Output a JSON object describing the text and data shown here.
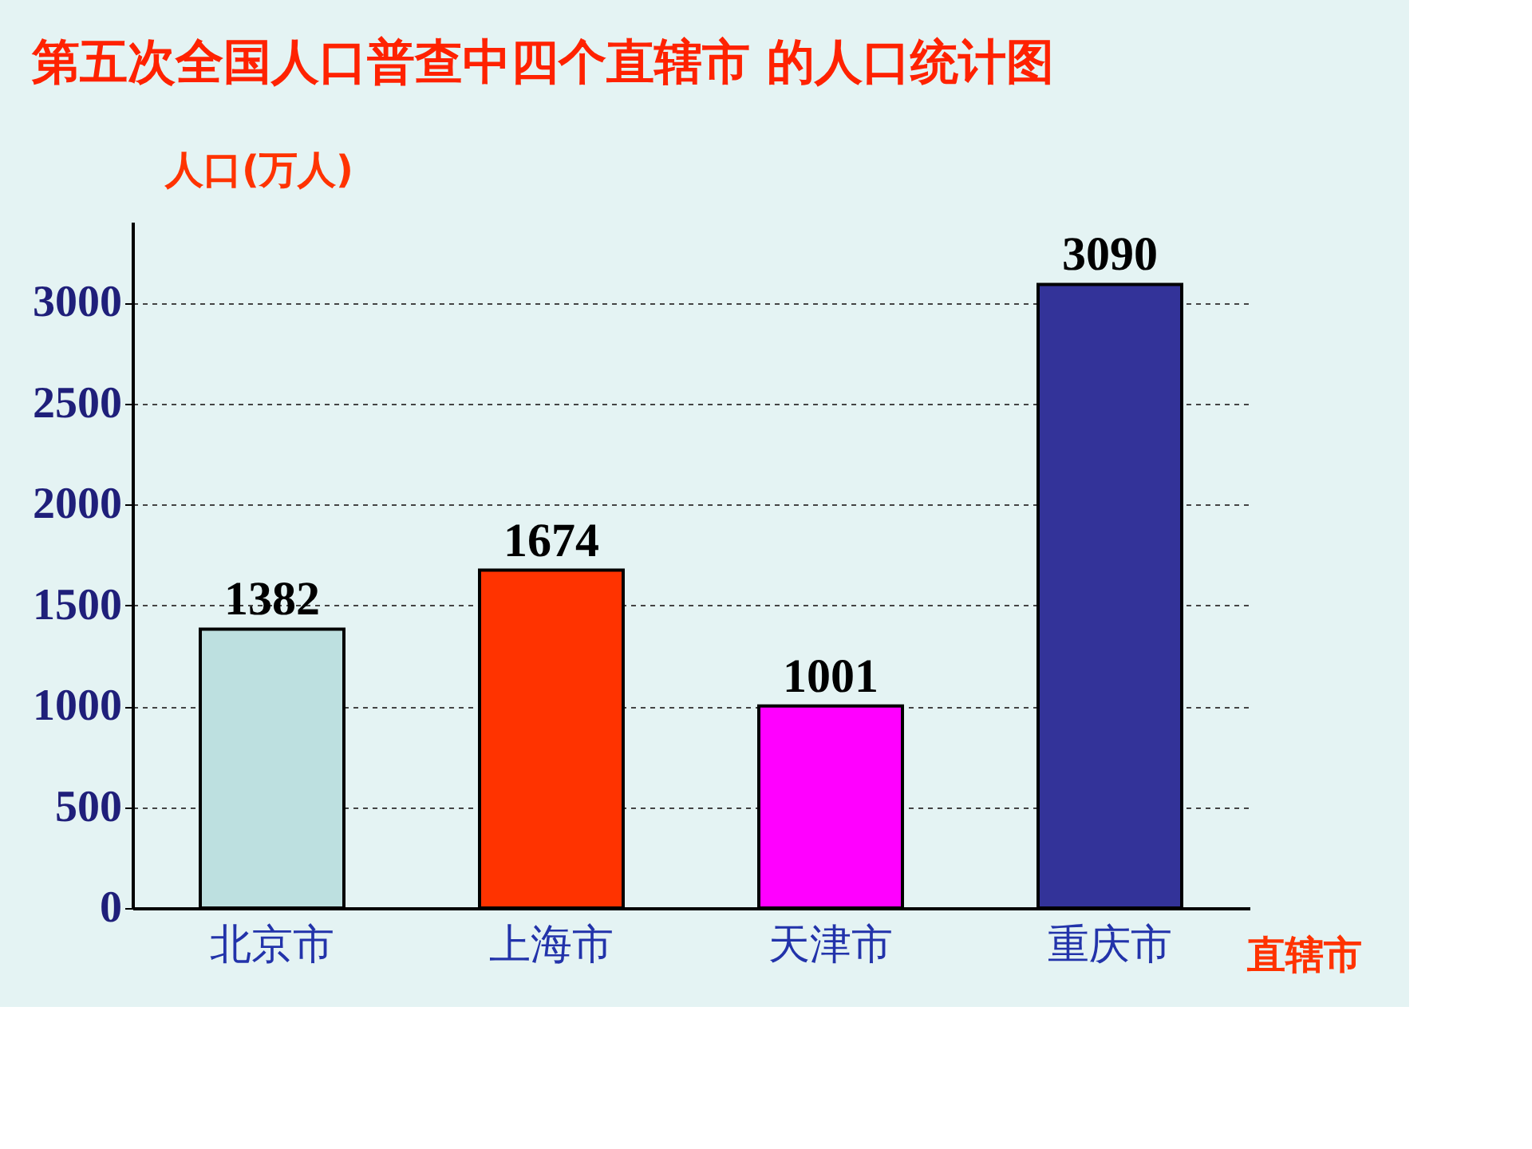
{
  "chart_data": {
    "type": "bar",
    "title": "第五次全国人口普查中四个直辖市 的人口统计图",
    "ylabel": "人口(万人)",
    "xlabel": "直辖市",
    "categories": [
      "北京市",
      "上海市",
      "天津市",
      "重庆市"
    ],
    "values": [
      1382,
      1674,
      1001,
      3090
    ],
    "colors": [
      "#bde0e0",
      "#ff3300",
      "#ff00ff",
      "#333399"
    ],
    "ylim": [
      0,
      3400
    ],
    "yticks": [
      0,
      500,
      1000,
      1500,
      2000,
      2500,
      3000
    ],
    "grid": "y",
    "data_labels": true
  }
}
